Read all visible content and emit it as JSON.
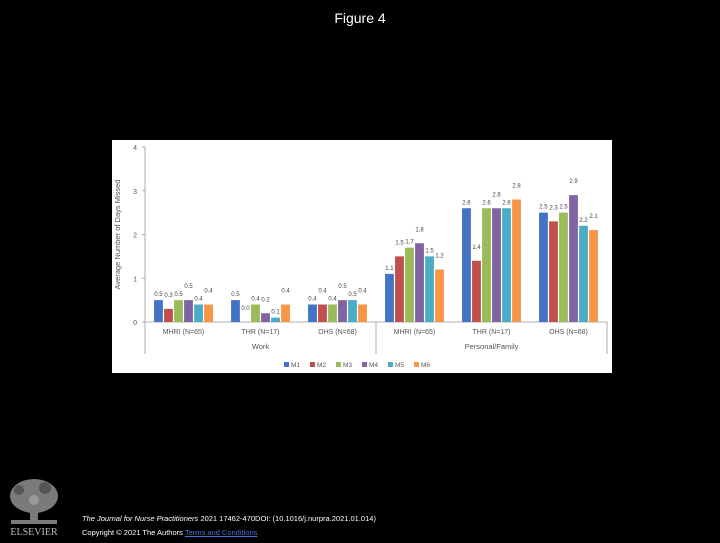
{
  "figure_title": "Figure 4",
  "publisher_logo": {
    "icon": "elsevier-tree-icon",
    "text": "ELSEVIER"
  },
  "caption": {
    "journal": "The Journal for Nurse Practitioners",
    "citation": " 2021 17462-470DOI: (10.1016/j.nurpra.2021.01.014)",
    "copyright": "Copyright © 2021 The Authors ",
    "link_text": "Terms and Conditions"
  },
  "chart_data": {
    "type": "bar",
    "ylabel": "Average Number of Days Missed",
    "ylim": [
      0,
      4
    ],
    "yticks": [
      "0",
      "1",
      "2",
      "3",
      "4"
    ],
    "grid": false,
    "legend_position": "bottom",
    "groups": [
      {
        "label": "Work",
        "categories": [
          "MHRI (N=65)",
          "THR (N=17)",
          "OHS (N=68)"
        ]
      },
      {
        "label": "Personal/Family",
        "categories": [
          "MHRI (N=65)",
          "THR (N=17)",
          "OHS (N=68)"
        ]
      }
    ],
    "series": [
      {
        "name": "M1",
        "color": "#4472c4",
        "values": [
          0.5,
          0.5,
          0.4,
          1.1,
          2.6,
          2.5
        ]
      },
      {
        "name": "M2",
        "color": "#c0504d",
        "values": [
          0.3,
          0.0,
          0.4,
          1.5,
          1.4,
          2.3
        ]
      },
      {
        "name": "M3",
        "color": "#9bbb59",
        "values": [
          0.5,
          0.4,
          0.4,
          1.7,
          2.6,
          2.5
        ]
      },
      {
        "name": "M4",
        "color": "#8064a2",
        "values": [
          0.5,
          0.2,
          0.5,
          1.8,
          2.6,
          2.9
        ]
      },
      {
        "name": "M5",
        "color": "#4bacc6",
        "values": [
          0.4,
          0.1,
          0.5,
          1.5,
          2.6,
          2.2
        ]
      },
      {
        "name": "M6",
        "color": "#f79646",
        "values": [
          0.4,
          0.4,
          0.4,
          1.2,
          2.8,
          2.1
        ]
      }
    ],
    "data_labels": [
      [
        "0.5",
        "0.3",
        "0.5",
        "0.5",
        "0.4",
        "0.4"
      ],
      [
        "0.5",
        "0.0",
        "0.4",
        "0.2",
        "0.1",
        "0.4"
      ],
      [
        "0.4",
        "0.4",
        "0.4",
        "0.5",
        "0.5",
        "0.4"
      ],
      [
        "1.1",
        "1.5",
        "1.7",
        "1.8",
        "1.5",
        "1.2"
      ],
      [
        "2.6",
        "1.4",
        "2.6",
        "2.6",
        "2.6",
        "2.8"
      ],
      [
        "2.5",
        "2.3",
        "2.5",
        "2.9",
        "2.2",
        "2.1"
      ]
    ]
  }
}
